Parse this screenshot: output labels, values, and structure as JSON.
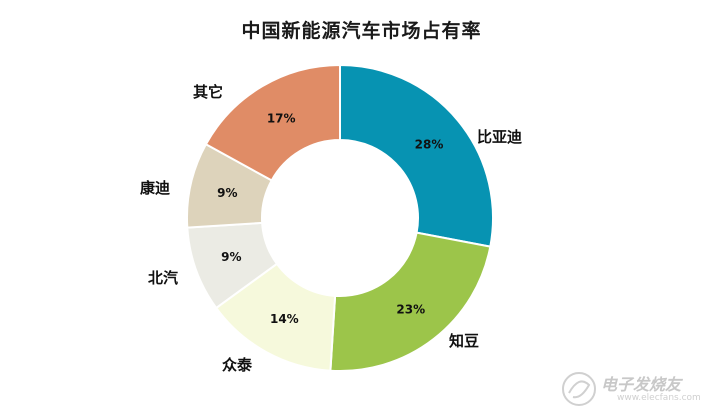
{
  "chart_data": {
    "type": "pie",
    "title": "中国新能源汽车市场占有率",
    "categories": [
      "比亚迪",
      "知豆",
      "众泰",
      "北汽",
      "康迪",
      "其它"
    ],
    "values": [
      28,
      23,
      14,
      9,
      9,
      17
    ],
    "value_labels": [
      "28%",
      "23%",
      "14%",
      "9%",
      "9%",
      "17%"
    ],
    "colors": [
      "#0793b2",
      "#9cc54a",
      "#f6f9dc",
      "#ebebe4",
      "#ddd3bb",
      "#e08c66"
    ],
    "donut": true,
    "legend": "none"
  },
  "watermark": {
    "text": "电子发烧友",
    "url": "www.elecfans.com"
  }
}
